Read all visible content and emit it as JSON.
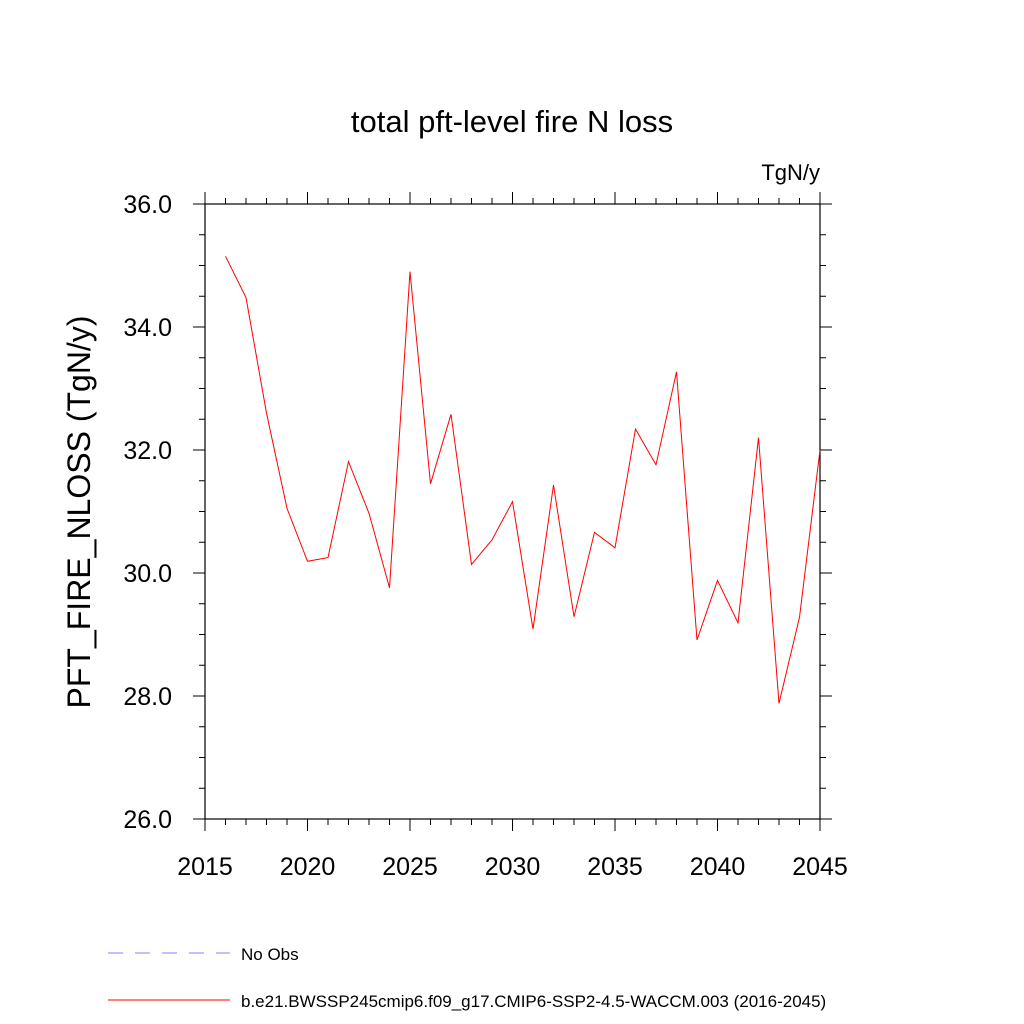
{
  "chart_data": {
    "type": "line",
    "title": "total pft-level fire N loss",
    "units_label": "TgN/y",
    "xlabel": "",
    "ylabel": "PFT_FIRE_NLOSS  (TgN/y)",
    "xlim": [
      2015,
      2045
    ],
    "ylim": [
      26.0,
      36.0
    ],
    "x_ticks": [
      "2015",
      "2020",
      "2025",
      "2030",
      "2035",
      "2040",
      "2045"
    ],
    "y_ticks": [
      "26.0",
      "28.0",
      "30.0",
      "32.0",
      "34.0",
      "36.0"
    ],
    "series": [
      {
        "name": "b.e21.BWSSP245cmip6.f09_g17.CMIP6-SSP2-4.5-WACCM.003 (2016-2045)",
        "color": "#ff0000",
        "style": "solid",
        "x": [
          2016,
          2017,
          2018,
          2019,
          2020,
          2021,
          2022,
          2023,
          2024,
          2025,
          2026,
          2027,
          2028,
          2029,
          2030,
          2031,
          2032,
          2033,
          2034,
          2035,
          2036,
          2037,
          2038,
          2039,
          2040,
          2041,
          2042,
          2043,
          2044,
          2045
        ],
        "values": [
          35.15,
          34.48,
          32.6,
          31.05,
          30.19,
          30.25,
          31.81,
          30.97,
          29.76,
          34.9,
          31.45,
          32.58,
          30.14,
          30.54,
          31.16,
          29.09,
          31.43,
          29.29,
          30.66,
          30.41,
          32.34,
          31.76,
          33.27,
          28.91,
          29.88,
          29.19,
          32.2,
          27.88,
          29.28,
          32.0
        ]
      }
    ],
    "legend": [
      {
        "label": "No Obs",
        "color": "#8080ff",
        "style": "dashed"
      },
      {
        "label": "b.e21.BWSSP245cmip6.f09_g17.CMIP6-SSP2-4.5-WACCM.003 (2016-2045)",
        "color": "#ff0000",
        "style": "solid"
      }
    ]
  }
}
